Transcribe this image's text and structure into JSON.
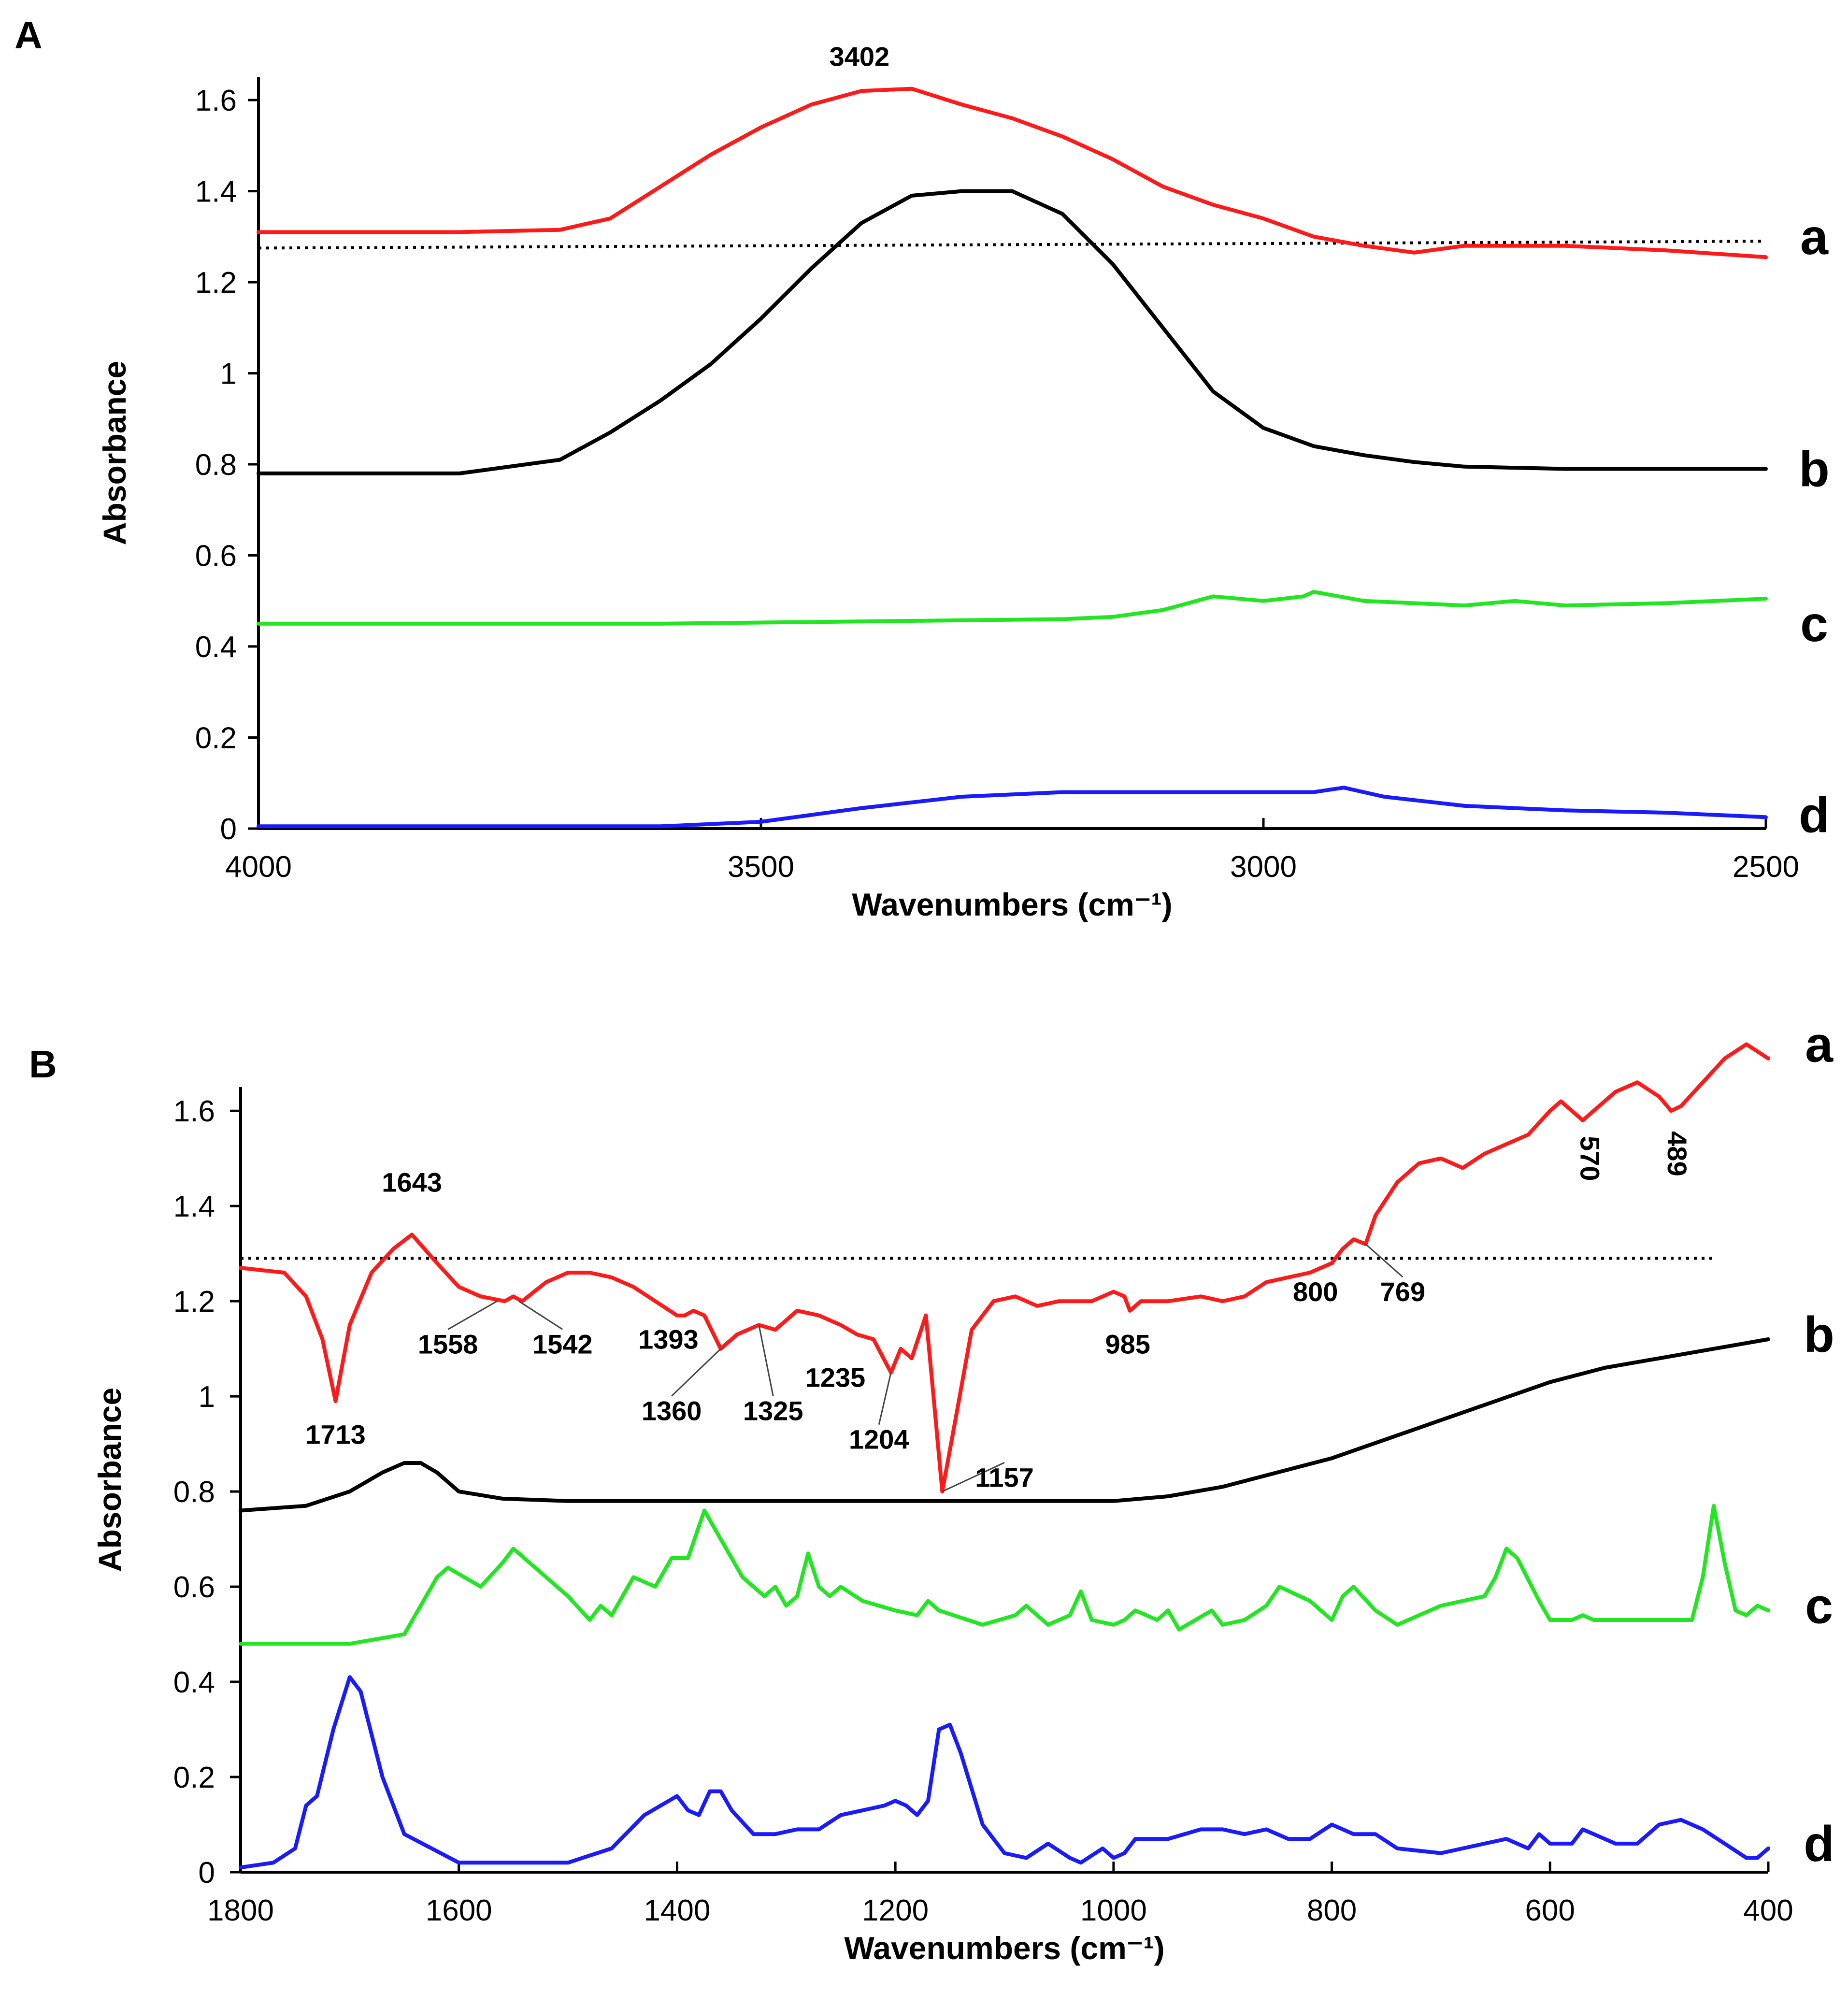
{
  "chart_data": [
    {
      "type": "line",
      "panel_label": "A",
      "xlabel": "Wavenumbers (cm⁻¹)",
      "ylabel": "Absorbance",
      "xlim": [
        4000,
        2500
      ],
      "ylim": [
        0,
        1.65
      ],
      "x_ticks": [
        4000,
        3500,
        3000,
        2500
      ],
      "x_tick_labels": [
        "4000",
        "3500",
        "3000",
        "2500"
      ],
      "y_ticks": [
        0,
        0.2,
        0.4,
        0.6,
        0.8,
        1,
        1.2,
        1.4,
        1.6
      ],
      "y_tick_labels": [
        "0",
        "0.2",
        "0.4",
        "0.6",
        "0.8",
        "1",
        "1.2",
        "1.4",
        "1.6"
      ],
      "grid": false,
      "reference_line": {
        "style": "dotted",
        "x": [
          4000,
          2500
        ],
        "y": [
          1.275,
          1.29
        ]
      },
      "series": [
        {
          "name": "a",
          "label": "a",
          "color": "#ff1a1a",
          "label_y": 1.3,
          "x": [
            4000,
            3800,
            3700,
            3650,
            3600,
            3550,
            3500,
            3450,
            3400,
            3350,
            3300,
            3250,
            3200,
            3150,
            3100,
            3050,
            3000,
            2950,
            2900,
            2850,
            2800,
            2700,
            2600,
            2500
          ],
          "y": [
            1.31,
            1.31,
            1.315,
            1.34,
            1.41,
            1.48,
            1.54,
            1.59,
            1.62,
            1.625,
            1.59,
            1.56,
            1.52,
            1.47,
            1.41,
            1.37,
            1.34,
            1.3,
            1.28,
            1.265,
            1.28,
            1.28,
            1.27,
            1.255
          ]
        },
        {
          "name": "b",
          "label": "b",
          "color": "#000000",
          "label_y": 0.79,
          "x": [
            4000,
            3800,
            3700,
            3650,
            3600,
            3550,
            3500,
            3450,
            3400,
            3350,
            3300,
            3250,
            3200,
            3150,
            3100,
            3050,
            3000,
            2950,
            2900,
            2850,
            2800,
            2700,
            2600,
            2500
          ],
          "y": [
            0.78,
            0.78,
            0.81,
            0.87,
            0.94,
            1.02,
            1.12,
            1.23,
            1.33,
            1.39,
            1.4,
            1.4,
            1.35,
            1.24,
            1.1,
            0.96,
            0.88,
            0.84,
            0.82,
            0.805,
            0.795,
            0.79,
            0.79,
            0.79
          ]
        },
        {
          "name": "c",
          "label": "c",
          "color": "#22e622",
          "label_y": 0.45,
          "x": [
            4000,
            3600,
            3400,
            3200,
            3150,
            3100,
            3050,
            3000,
            2960,
            2950,
            2900,
            2800,
            2750,
            2700,
            2600,
            2500
          ],
          "y": [
            0.45,
            0.45,
            0.455,
            0.46,
            0.465,
            0.48,
            0.51,
            0.5,
            0.51,
            0.52,
            0.5,
            0.49,
            0.5,
            0.49,
            0.495,
            0.505
          ]
        },
        {
          "name": "d",
          "label": "d",
          "color": "#1a1aff",
          "label_y": 0.03,
          "x": [
            4000,
            3600,
            3500,
            3400,
            3300,
            3200,
            3100,
            3000,
            2950,
            2920,
            2880,
            2800,
            2700,
            2600,
            2500
          ],
          "y": [
            0.005,
            0.005,
            0.015,
            0.045,
            0.07,
            0.08,
            0.08,
            0.08,
            0.08,
            0.09,
            0.07,
            0.05,
            0.04,
            0.035,
            0.025
          ]
        }
      ],
      "annotations": [
        {
          "text": "3402",
          "x": 3402,
          "y": 1.625
        }
      ]
    },
    {
      "type": "line",
      "panel_label": "B",
      "xlabel": "Wavenumbers (cm⁻¹)",
      "ylabel": "Absorbance",
      "xlim": [
        1800,
        400
      ],
      "ylim": [
        0,
        1.65
      ],
      "x_ticks": [
        1800,
        1600,
        1400,
        1200,
        1000,
        800,
        600,
        400
      ],
      "x_tick_labels": [
        "1800",
        "1600",
        "1400",
        "1200",
        "1000",
        "800",
        "600",
        "400"
      ],
      "y_ticks": [
        0,
        0.2,
        0.4,
        0.6,
        0.8,
        1,
        1.2,
        1.4,
        1.6
      ],
      "y_tick_labels": [
        "0",
        "0.2",
        "0.4",
        "0.6",
        "0.8",
        "1",
        "1.2",
        "1.4",
        "1.6"
      ],
      "grid": false,
      "reference_line": {
        "style": "dotted",
        "x": [
          1800,
          450
        ],
        "y": [
          1.29,
          1.29
        ]
      },
      "series": [
        {
          "name": "a",
          "label": "a",
          "color": "#ff1a1a",
          "label_y": 1.74,
          "x": [
            1800,
            1760,
            1740,
            1725,
            1713,
            1700,
            1680,
            1660,
            1643,
            1620,
            1600,
            1580,
            1558,
            1550,
            1542,
            1520,
            1500,
            1480,
            1460,
            1440,
            1420,
            1400,
            1393,
            1385,
            1375,
            1360,
            1345,
            1325,
            1310,
            1290,
            1270,
            1250,
            1235,
            1220,
            1204,
            1195,
            1185,
            1172,
            1165,
            1157,
            1145,
            1130,
            1110,
            1090,
            1070,
            1050,
            1020,
            1000,
            990,
            985,
            975,
            950,
            920,
            900,
            880,
            860,
            840,
            820,
            800,
            790,
            780,
            769,
            760,
            740,
            720,
            700,
            680,
            660,
            640,
            620,
            600,
            590,
            580,
            570,
            560,
            540,
            520,
            500,
            489,
            480,
            460,
            440,
            420,
            400
          ],
          "y": [
            1.27,
            1.26,
            1.21,
            1.12,
            0.99,
            1.15,
            1.26,
            1.31,
            1.34,
            1.28,
            1.23,
            1.21,
            1.2,
            1.21,
            1.2,
            1.24,
            1.26,
            1.26,
            1.25,
            1.23,
            1.2,
            1.17,
            1.17,
            1.18,
            1.17,
            1.1,
            1.13,
            1.15,
            1.14,
            1.18,
            1.17,
            1.15,
            1.13,
            1.12,
            1.05,
            1.1,
            1.08,
            1.17,
            1.0,
            0.8,
            0.95,
            1.14,
            1.2,
            1.21,
            1.19,
            1.2,
            1.2,
            1.22,
            1.21,
            1.18,
            1.2,
            1.2,
            1.21,
            1.2,
            1.21,
            1.24,
            1.25,
            1.26,
            1.28,
            1.31,
            1.33,
            1.32,
            1.38,
            1.45,
            1.49,
            1.5,
            1.48,
            1.51,
            1.53,
            1.55,
            1.6,
            1.62,
            1.6,
            1.58,
            1.6,
            1.64,
            1.66,
            1.63,
            1.6,
            1.61,
            1.66,
            1.71,
            1.74,
            1.71
          ]
        },
        {
          "name": "b",
          "label": "b",
          "color": "#000000",
          "label_y": 1.13,
          "x": [
            1800,
            1740,
            1700,
            1670,
            1650,
            1635,
            1620,
            1600,
            1560,
            1500,
            1400,
            1300,
            1200,
            1100,
            1000,
            950,
            900,
            850,
            800,
            750,
            700,
            650,
            600,
            550,
            500,
            450,
            400
          ],
          "y": [
            0.76,
            0.77,
            0.8,
            0.84,
            0.86,
            0.86,
            0.84,
            0.8,
            0.785,
            0.78,
            0.78,
            0.78,
            0.78,
            0.78,
            0.78,
            0.79,
            0.81,
            0.84,
            0.87,
            0.91,
            0.95,
            0.99,
            1.03,
            1.06,
            1.08,
            1.1,
            1.12
          ]
        },
        {
          "name": "c",
          "label": "c",
          "color": "#22e622",
          "label_y": 0.56,
          "x": [
            1800,
            1700,
            1650,
            1630,
            1620,
            1610,
            1580,
            1560,
            1550,
            1500,
            1480,
            1470,
            1460,
            1440,
            1430,
            1420,
            1405,
            1390,
            1375,
            1360,
            1340,
            1320,
            1310,
            1300,
            1290,
            1280,
            1270,
            1260,
            1250,
            1230,
            1200,
            1180,
            1170,
            1160,
            1120,
            1090,
            1080,
            1060,
            1040,
            1030,
            1020,
            1000,
            990,
            980,
            960,
            950,
            940,
            925,
            910,
            900,
            880,
            860,
            848,
            820,
            800,
            790,
            780,
            760,
            740,
            700,
            660,
            650,
            640,
            630,
            610,
            600,
            580,
            570,
            560,
            500,
            470,
            460,
            450,
            440,
            430,
            420,
            410,
            400
          ],
          "y": [
            0.48,
            0.48,
            0.5,
            0.58,
            0.62,
            0.64,
            0.6,
            0.65,
            0.68,
            0.58,
            0.53,
            0.56,
            0.54,
            0.62,
            0.61,
            0.6,
            0.66,
            0.66,
            0.76,
            0.7,
            0.62,
            0.58,
            0.6,
            0.56,
            0.58,
            0.67,
            0.6,
            0.58,
            0.6,
            0.57,
            0.55,
            0.54,
            0.57,
            0.55,
            0.52,
            0.54,
            0.56,
            0.52,
            0.54,
            0.59,
            0.53,
            0.52,
            0.53,
            0.55,
            0.53,
            0.55,
            0.51,
            0.53,
            0.55,
            0.52,
            0.53,
            0.56,
            0.6,
            0.57,
            0.53,
            0.58,
            0.6,
            0.55,
            0.52,
            0.56,
            0.58,
            0.62,
            0.68,
            0.66,
            0.57,
            0.53,
            0.53,
            0.54,
            0.53,
            0.53,
            0.53,
            0.62,
            0.77,
            0.65,
            0.55,
            0.54,
            0.56,
            0.55
          ]
        },
        {
          "name": "d",
          "label": "d",
          "color": "#1a1aff",
          "label_y": 0.06,
          "x": [
            1800,
            1770,
            1750,
            1740,
            1730,
            1715,
            1700,
            1690,
            1670,
            1650,
            1600,
            1500,
            1460,
            1430,
            1400,
            1390,
            1380,
            1370,
            1360,
            1350,
            1330,
            1310,
            1290,
            1280,
            1270,
            1250,
            1230,
            1210,
            1200,
            1190,
            1180,
            1170,
            1160,
            1150,
            1140,
            1120,
            1100,
            1080,
            1060,
            1040,
            1030,
            1010,
            1000,
            990,
            980,
            950,
            920,
            900,
            880,
            860,
            840,
            820,
            800,
            780,
            760,
            740,
            700,
            660,
            640,
            620,
            610,
            600,
            580,
            570,
            560,
            540,
            520,
            500,
            480,
            460,
            440,
            420,
            410,
            400
          ],
          "y": [
            0.01,
            0.02,
            0.05,
            0.14,
            0.16,
            0.3,
            0.41,
            0.38,
            0.2,
            0.08,
            0.02,
            0.02,
            0.05,
            0.12,
            0.16,
            0.13,
            0.12,
            0.17,
            0.17,
            0.13,
            0.08,
            0.08,
            0.09,
            0.09,
            0.09,
            0.12,
            0.13,
            0.14,
            0.15,
            0.14,
            0.12,
            0.15,
            0.3,
            0.31,
            0.25,
            0.1,
            0.04,
            0.03,
            0.06,
            0.03,
            0.02,
            0.05,
            0.03,
            0.04,
            0.07,
            0.07,
            0.09,
            0.09,
            0.08,
            0.09,
            0.07,
            0.07,
            0.1,
            0.08,
            0.08,
            0.05,
            0.04,
            0.06,
            0.07,
            0.05,
            0.08,
            0.06,
            0.06,
            0.09,
            0.08,
            0.06,
            0.06,
            0.1,
            0.11,
            0.09,
            0.06,
            0.03,
            0.03,
            0.05
          ]
        }
      ],
      "annotations": [
        {
          "text": "1643",
          "x": 1643,
          "y": 1.34,
          "label_x": 1643,
          "label_y": 1.43,
          "leader": false
        },
        {
          "text": "1713",
          "x": 1713,
          "y": 0.99,
          "label_x": 1713,
          "label_y": 0.9,
          "leader": false
        },
        {
          "text": "1558",
          "x": 1565,
          "y": 1.2,
          "label_x": 1610,
          "label_y": 1.09,
          "leader": true
        },
        {
          "text": "1542",
          "x": 1545,
          "y": 1.2,
          "label_x": 1505,
          "label_y": 1.09,
          "leader": true
        },
        {
          "text": "1393",
          "x": 1393,
          "y": 1.17,
          "label_x": 1408,
          "label_y": 1.1,
          "leader": false
        },
        {
          "text": "1360",
          "x": 1360,
          "y": 1.1,
          "label_x": 1405,
          "label_y": 0.95,
          "leader": true
        },
        {
          "text": "1325",
          "x": 1325,
          "y": 1.15,
          "label_x": 1312,
          "label_y": 0.95,
          "leader": true
        },
        {
          "text": "1235",
          "x": 1235,
          "y": 1.13,
          "label_x": 1255,
          "label_y": 1.02,
          "leader": false
        },
        {
          "text": "1204",
          "x": 1204,
          "y": 1.05,
          "label_x": 1215,
          "label_y": 0.89,
          "leader": true
        },
        {
          "text": "1157",
          "x": 1157,
          "y": 0.8,
          "label_x": 1100,
          "label_y": 0.81,
          "leader": true
        },
        {
          "text": "985",
          "x": 985,
          "y": 1.18,
          "label_x": 987,
          "label_y": 1.09,
          "leader": false
        },
        {
          "text": "800",
          "x": 800,
          "y": 1.28,
          "label_x": 815,
          "label_y": 1.2,
          "leader": false
        },
        {
          "text": "769",
          "x": 769,
          "y": 1.32,
          "label_x": 735,
          "label_y": 1.2,
          "leader": true
        },
        {
          "text": "570",
          "x": 570,
          "y": 1.58,
          "label_x": 572,
          "label_y": 1.5,
          "leader": false,
          "rotate": 90
        },
        {
          "text": "489",
          "x": 489,
          "y": 1.6,
          "label_x": 492,
          "label_y": 1.51,
          "leader": false,
          "rotate": 90
        }
      ]
    }
  ]
}
